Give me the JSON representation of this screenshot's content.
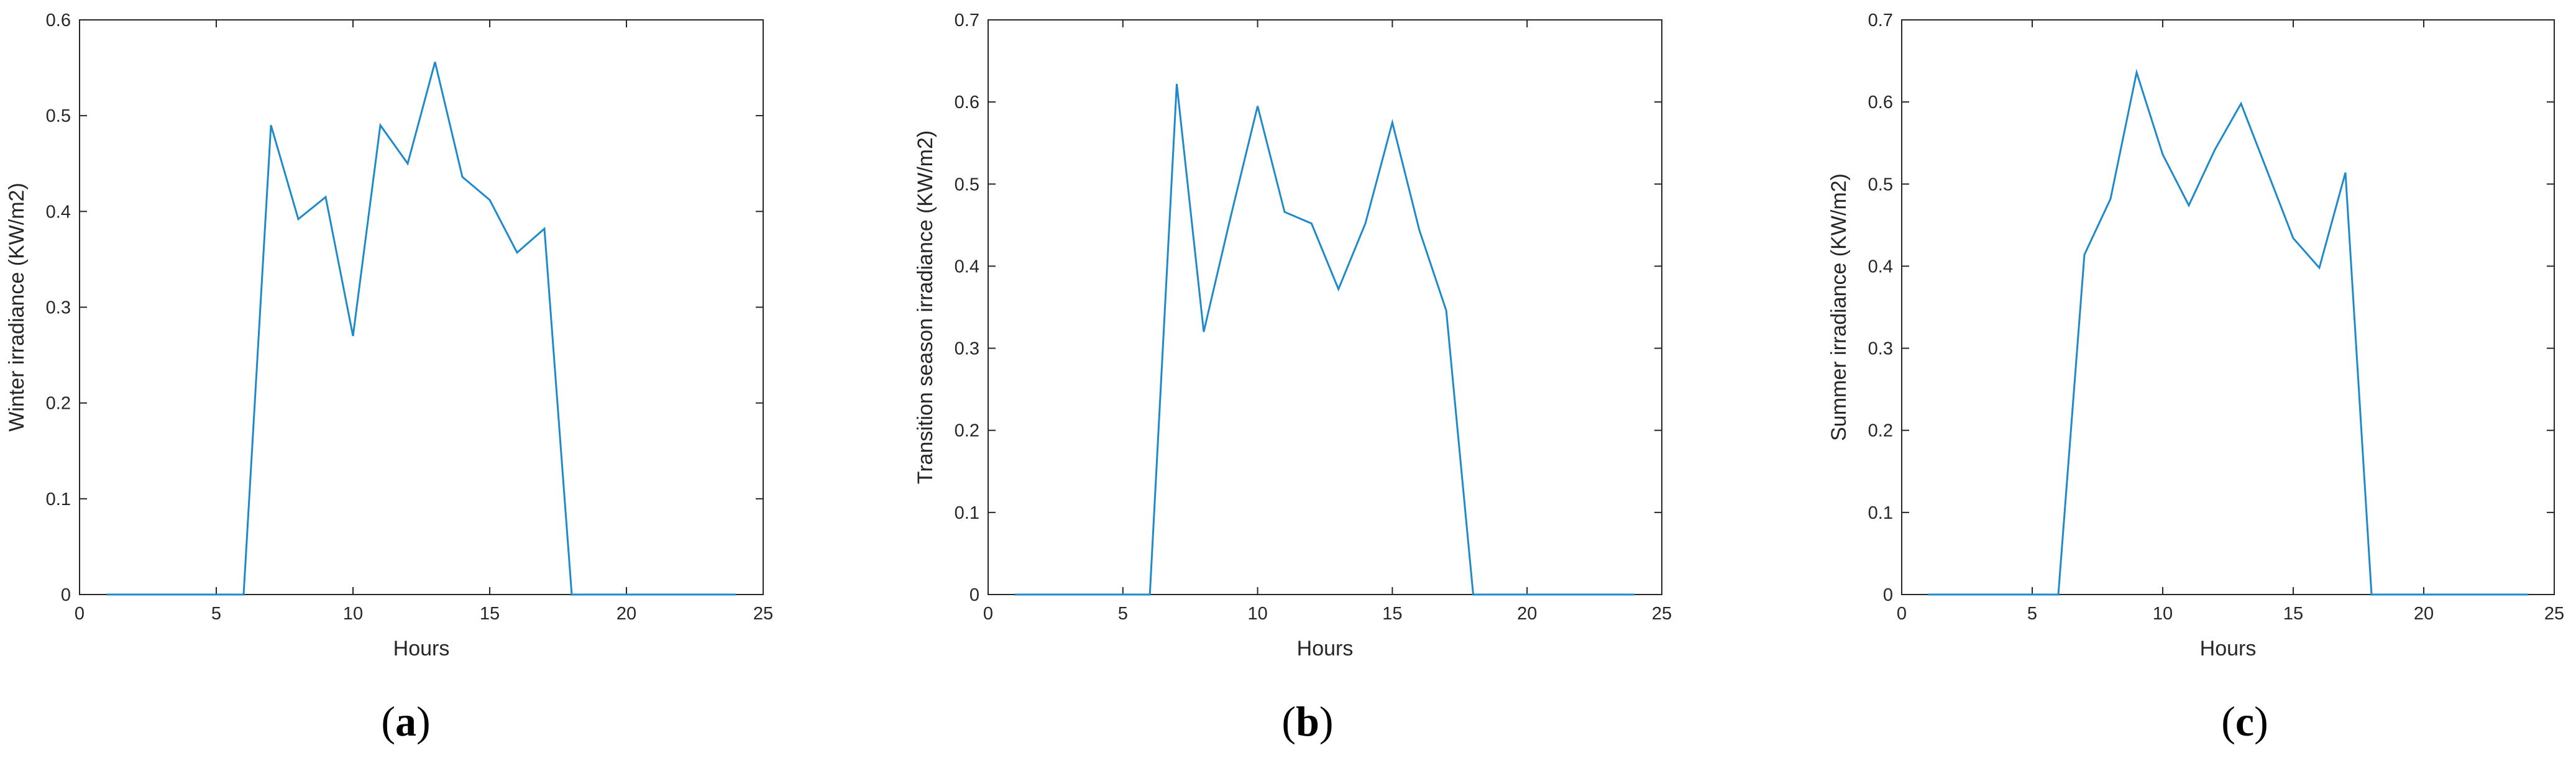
{
  "colors": {
    "line": "#1f8ac9",
    "axis": "#262626"
  },
  "chart_data": [
    {
      "type": "line",
      "panel_label": "a",
      "xlabel": "Hours",
      "ylabel": "Winter irradiance (KW/m2)",
      "xlim": [
        0,
        25
      ],
      "ylim": [
        0,
        0.6
      ],
      "xticks": [
        "0",
        "5",
        "10",
        "15",
        "20",
        "25"
      ],
      "yticks": [
        "0",
        "0.1",
        "0.2",
        "0.3",
        "0.4",
        "0.5",
        "0.6"
      ],
      "grid": false,
      "x": [
        1,
        2,
        3,
        4,
        5,
        6,
        7,
        8,
        9,
        10,
        11,
        12,
        13,
        14,
        15,
        16,
        17,
        18,
        19,
        20,
        21,
        22,
        23,
        24
      ],
      "y": [
        0,
        0,
        0,
        0,
        0,
        0,
        0.49,
        0.392,
        0.415,
        0.27,
        0.49,
        0.45,
        0.556,
        0.436,
        0.412,
        0.357,
        0.382,
        0,
        0,
        0,
        0,
        0,
        0,
        0
      ]
    },
    {
      "type": "line",
      "panel_label": "b",
      "xlabel": "Hours",
      "ylabel": "Transition season irradiance (KW/m2)",
      "xlim": [
        0,
        25
      ],
      "ylim": [
        0,
        0.7
      ],
      "xticks": [
        "0",
        "5",
        "10",
        "15",
        "20",
        "25"
      ],
      "yticks": [
        "0",
        "0.1",
        "0.2",
        "0.3",
        "0.4",
        "0.5",
        "0.6",
        "0.7"
      ],
      "grid": false,
      "x": [
        1,
        2,
        3,
        4,
        5,
        6,
        7,
        8,
        9,
        10,
        11,
        12,
        13,
        14,
        15,
        16,
        17,
        18,
        19,
        20,
        21,
        22,
        23,
        24
      ],
      "y": [
        0,
        0,
        0,
        0,
        0,
        0,
        0.622,
        0.32,
        0.46,
        0.595,
        0.466,
        0.452,
        0.372,
        0.452,
        0.575,
        0.444,
        0.346,
        0,
        0,
        0,
        0,
        0,
        0,
        0
      ]
    },
    {
      "type": "line",
      "panel_label": "c",
      "xlabel": "Hours",
      "ylabel": "Summer irradiance (KW/m2)",
      "xlim": [
        0,
        25
      ],
      "ylim": [
        0,
        0.7
      ],
      "xticks": [
        "0",
        "5",
        "10",
        "15",
        "20",
        "25"
      ],
      "yticks": [
        "0",
        "0.1",
        "0.2",
        "0.3",
        "0.4",
        "0.5",
        "0.6",
        "0.7"
      ],
      "grid": false,
      "x": [
        1,
        2,
        3,
        4,
        5,
        6,
        7,
        8,
        9,
        10,
        11,
        12,
        13,
        14,
        15,
        16,
        17,
        18,
        19,
        20,
        21,
        22,
        23,
        24
      ],
      "y": [
        0,
        0,
        0,
        0,
        0,
        0,
        0.414,
        0.482,
        0.636,
        0.536,
        0.474,
        0.542,
        0.598,
        0.516,
        0.434,
        0.398,
        0.514,
        0,
        0,
        0,
        0,
        0,
        0,
        0
      ]
    }
  ],
  "captions": [
    {
      "open": "(",
      "letter": "a",
      "close": ")"
    },
    {
      "open": "(",
      "letter": "b",
      "close": ")"
    },
    {
      "open": "(",
      "letter": "c",
      "close": ")"
    }
  ]
}
